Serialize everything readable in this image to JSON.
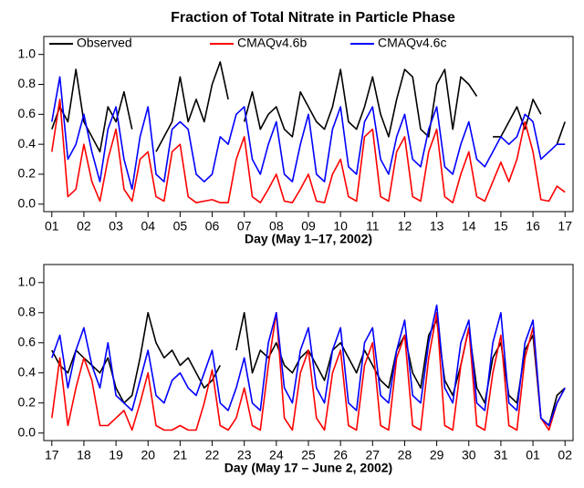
{
  "chart_data": [
    {
      "type": "line",
      "title": "Fraction of Total Nitrate in Particle Phase",
      "x_label": "Day (May 1–17, 2002)",
      "legend": "top",
      "x": [
        1,
        1.25,
        1.5,
        1.75,
        2,
        2.25,
        2.5,
        2.75,
        3,
        3.25,
        3.5,
        3.75,
        4,
        4.25,
        4.5,
        4.75,
        5,
        5.25,
        5.5,
        5.75,
        6,
        6.25,
        6.5,
        6.75,
        7,
        7.25,
        7.5,
        7.75,
        8,
        8.25,
        8.5,
        8.75,
        9,
        9.25,
        9.5,
        9.75,
        10,
        10.25,
        10.5,
        10.75,
        11,
        11.25,
        11.5,
        11.75,
        12,
        12.25,
        12.5,
        12.75,
        13,
        13.25,
        13.5,
        13.75,
        14,
        14.25,
        14.5,
        14.75,
        15,
        15.25,
        15.5,
        15.75,
        16,
        16.25,
        16.5,
        16.75,
        17
      ],
      "xlim": [
        0.75,
        17.25
      ],
      "xticks": [
        {
          "value": 1,
          "label": "01"
        },
        {
          "value": 2,
          "label": "02"
        },
        {
          "value": 3,
          "label": "03"
        },
        {
          "value": 4,
          "label": "04"
        },
        {
          "value": 5,
          "label": "05"
        },
        {
          "value": 6,
          "label": "06"
        },
        {
          "value": 7,
          "label": "07"
        },
        {
          "value": 8,
          "label": "08"
        },
        {
          "value": 9,
          "label": "09"
        },
        10,
        11,
        12,
        13,
        14,
        15,
        16,
        17
      ],
      "ylim": [
        -0.05,
        1.12
      ],
      "yticks": [
        {
          "value": 0,
          "label": "0.0"
        },
        0.2,
        0.4,
        0.6,
        0.8,
        {
          "value": 1,
          "label": "1.0"
        }
      ],
      "series": [
        {
          "name": "Observed",
          "color": "#000000",
          "values": [
            0.5,
            0.65,
            0.55,
            0.9,
            0.55,
            0.45,
            0.35,
            0.65,
            0.55,
            0.75,
            0.5,
            null,
            null,
            0.35,
            0.45,
            0.55,
            0.85,
            0.55,
            0.7,
            0.55,
            0.8,
            0.95,
            0.7,
            null,
            0.55,
            0.75,
            0.5,
            0.6,
            0.65,
            0.5,
            0.45,
            0.75,
            0.65,
            0.55,
            0.5,
            0.65,
            0.9,
            0.55,
            0.5,
            0.65,
            0.85,
            0.6,
            0.45,
            0.7,
            0.9,
            0.85,
            0.5,
            0.45,
            0.8,
            0.9,
            0.5,
            0.85,
            0.8,
            0.72,
            null,
            0.45,
            0.45,
            0.55,
            0.65,
            0.5,
            0.7,
            0.6,
            null,
            0.4,
            0.55
          ]
        },
        {
          "name": "CMAQv4.6b",
          "color": "#ff0000",
          "values": [
            0.35,
            0.7,
            0.05,
            0.1,
            0.4,
            0.15,
            0.02,
            0.3,
            0.5,
            0.1,
            0.02,
            0.3,
            0.35,
            0.05,
            0.02,
            0.35,
            0.4,
            0.05,
            0.01,
            0.02,
            0.03,
            0.01,
            0.01,
            0.3,
            0.45,
            0.05,
            0.01,
            0.1,
            0.2,
            0.02,
            0.01,
            0.1,
            0.2,
            0.02,
            0.01,
            0.2,
            0.3,
            0.05,
            0.02,
            0.45,
            0.5,
            0.05,
            0.02,
            0.35,
            0.45,
            0.05,
            0.02,
            0.35,
            0.5,
            0.05,
            0.01,
            0.2,
            0.35,
            0.05,
            0.02,
            0.15,
            0.28,
            0.15,
            0.3,
            0.55,
            0.35,
            0.03,
            0.02,
            0.12,
            0.08
          ]
        },
        {
          "name": "CMAQv4.6c",
          "color": "#0000ff",
          "values": [
            0.55,
            0.85,
            0.3,
            0.4,
            0.6,
            0.35,
            0.15,
            0.5,
            0.65,
            0.3,
            0.1,
            0.45,
            0.65,
            0.2,
            0.15,
            0.5,
            0.55,
            0.5,
            0.2,
            0.15,
            0.2,
            0.45,
            0.4,
            0.6,
            0.65,
            0.3,
            0.2,
            0.4,
            0.55,
            0.2,
            0.15,
            0.4,
            0.6,
            0.2,
            0.15,
            0.5,
            0.65,
            0.25,
            0.2,
            0.55,
            0.65,
            0.3,
            0.2,
            0.45,
            0.6,
            0.3,
            0.25,
            0.5,
            0.65,
            0.25,
            0.2,
            0.4,
            0.55,
            0.3,
            0.25,
            0.35,
            0.45,
            0.4,
            0.45,
            0.6,
            0.55,
            0.3,
            0.35,
            0.4,
            0.4
          ]
        }
      ]
    },
    {
      "type": "line",
      "x_label": "Day (May 17 – June 2, 2002)",
      "x": [
        17,
        17.25,
        17.5,
        17.75,
        18,
        18.25,
        18.5,
        18.75,
        19,
        19.25,
        19.5,
        19.75,
        20,
        20.25,
        20.5,
        20.75,
        21,
        21.25,
        21.5,
        21.75,
        22,
        22.25,
        22.5,
        22.75,
        23,
        23.25,
        23.5,
        23.75,
        24,
        24.25,
        24.5,
        24.75,
        25,
        25.25,
        25.5,
        25.75,
        26,
        26.25,
        26.5,
        26.75,
        27,
        27.25,
        27.5,
        27.75,
        28,
        28.25,
        28.5,
        28.75,
        29,
        29.25,
        29.5,
        29.75,
        30,
        30.25,
        30.5,
        30.75,
        31,
        31.25,
        31.5,
        31.75,
        32,
        32.25,
        32.5,
        32.75,
        33
      ],
      "xlim": [
        16.75,
        33.25
      ],
      "xticks": [
        17,
        18,
        19,
        20,
        21,
        22,
        23,
        24,
        25,
        26,
        27,
        28,
        29,
        30,
        31,
        {
          "value": 32,
          "label": "01"
        },
        {
          "value": 33,
          "label": "02"
        }
      ],
      "ylim": [
        -0.05,
        1.12
      ],
      "yticks": [
        {
          "value": 0,
          "label": "0.0"
        },
        0.2,
        0.4,
        0.6,
        0.8,
        {
          "value": 1,
          "label": "1.0"
        }
      ],
      "series": [
        {
          "color": "#000000",
          "values": [
            0.55,
            0.45,
            0.4,
            0.55,
            0.5,
            0.45,
            0.4,
            0.5,
            0.3,
            0.2,
            0.25,
            0.5,
            0.8,
            0.6,
            0.5,
            0.55,
            0.45,
            0.5,
            0.4,
            0.3,
            0.35,
            0.45,
            null,
            0.55,
            0.8,
            0.4,
            0.55,
            0.5,
            0.6,
            0.45,
            0.4,
            0.5,
            0.55,
            0.45,
            0.35,
            0.55,
            0.6,
            0.5,
            0.4,
            0.55,
            0.45,
            0.35,
            0.3,
            0.55,
            0.65,
            0.4,
            0.3,
            0.65,
            0.75,
            0.35,
            0.25,
            0.45,
            0.7,
            0.3,
            0.2,
            0.5,
            0.6,
            0.25,
            0.2,
            0.55,
            0.65,
            0.1,
            0.05,
            0.25,
            0.3
          ]
        },
        {
          "color": "#ff0000",
          "values": [
            0.1,
            0.5,
            0.05,
            0.3,
            0.5,
            0.35,
            0.05,
            0.05,
            0.1,
            0.15,
            0.02,
            0.2,
            0.4,
            0.05,
            0.02,
            0.02,
            0.05,
            0.02,
            0.02,
            0.2,
            0.42,
            0.05,
            0.02,
            0.1,
            0.3,
            0.05,
            0.02,
            0.45,
            0.8,
            0.1,
            0.02,
            0.4,
            0.55,
            0.1,
            0.02,
            0.4,
            0.55,
            0.05,
            0.02,
            0.45,
            0.6,
            0.05,
            0.02,
            0.5,
            0.65,
            0.05,
            0.02,
            0.5,
            0.8,
            0.05,
            0.02,
            0.45,
            0.7,
            0.05,
            0.02,
            0.4,
            0.65,
            0.05,
            0.02,
            0.5,
            0.7,
            0.1,
            0.02,
            0.2,
            0.3
          ]
        },
        {
          "color": "#0000ff",
          "values": [
            0.5,
            0.65,
            0.3,
            0.55,
            0.7,
            0.45,
            0.3,
            0.6,
            0.25,
            0.2,
            0.15,
            0.35,
            0.55,
            0.25,
            0.2,
            0.35,
            0.4,
            0.3,
            0.25,
            0.4,
            0.55,
            0.2,
            0.15,
            0.3,
            0.5,
            0.2,
            0.15,
            0.6,
            0.8,
            0.3,
            0.2,
            0.55,
            0.7,
            0.3,
            0.2,
            0.55,
            0.7,
            0.2,
            0.15,
            0.6,
            0.7,
            0.25,
            0.2,
            0.55,
            0.75,
            0.25,
            0.2,
            0.6,
            0.85,
            0.3,
            0.2,
            0.6,
            0.75,
            0.2,
            0.15,
            0.6,
            0.8,
            0.2,
            0.15,
            0.6,
            0.75,
            0.1,
            0.05,
            0.2,
            0.3
          ]
        }
      ]
    }
  ]
}
